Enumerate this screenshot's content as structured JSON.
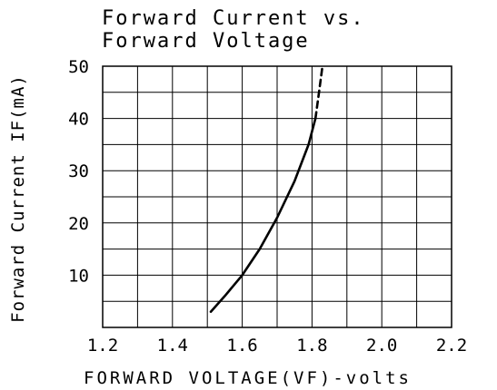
{
  "chart_data": {
    "type": "line",
    "title_lines": [
      "Forward Current vs.",
      "Forward Voltage"
    ],
    "xlabel": "FORWARD VOLTAGE(VF)-volts",
    "ylabel": "Forward Current IF(mA)",
    "xlim": [
      1.2,
      2.2
    ],
    "ylim": [
      0,
      50
    ],
    "x_ticks": [
      "1.2",
      "1.4",
      "1.6",
      "1.8",
      "2.0",
      "2.2"
    ],
    "y_ticks": [
      "10",
      "20",
      "30",
      "40",
      "50"
    ],
    "grid": true,
    "series": [
      {
        "style": "solid",
        "color": "#000000",
        "points": [
          [
            1.51,
            3
          ],
          [
            1.55,
            6
          ],
          [
            1.6,
            10
          ],
          [
            1.65,
            15
          ],
          [
            1.7,
            21
          ],
          [
            1.75,
            28
          ],
          [
            1.79,
            35
          ],
          [
            1.81,
            40
          ]
        ]
      },
      {
        "style": "dashed",
        "color": "#000000",
        "points": [
          [
            1.81,
            40
          ],
          [
            1.82,
            45
          ],
          [
            1.83,
            50
          ]
        ]
      }
    ]
  }
}
